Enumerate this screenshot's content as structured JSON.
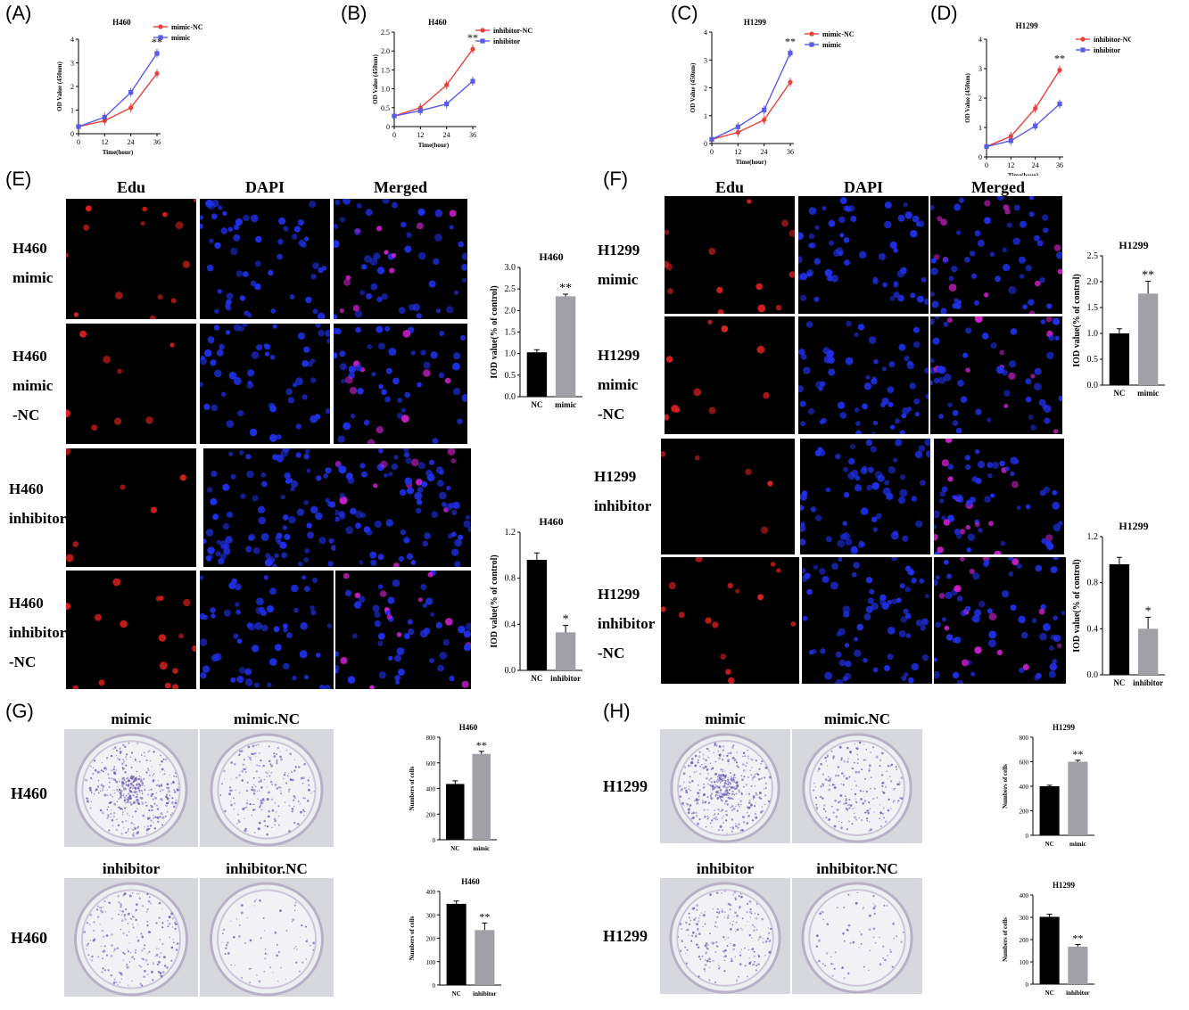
{
  "panel_labels": [
    "(A)",
    "(B)",
    "(C)",
    "(D)",
    "(E)",
    "(F)",
    "(G)",
    "(H)"
  ],
  "micro_headers": {
    "edu": "Edu",
    "dapi": "DAPI",
    "merged": "Merged"
  },
  "e_rows": [
    [
      "H460",
      "mimic"
    ],
    [
      "H460",
      "mimic",
      "-NC"
    ],
    [
      "H460",
      "inhibitor"
    ],
    [
      "H460",
      "inhibitor",
      "-NC"
    ]
  ],
  "f_rows": [
    [
      "H1299",
      "mimic"
    ],
    [
      "H1299",
      "mimic",
      "-NC"
    ],
    [
      "H1299",
      "inhibitor"
    ],
    [
      "H1299",
      "inhibitor",
      "-NC"
    ]
  ],
  "g_dish_labels": {
    "mimic": "mimic",
    "mimic_nc": "mimic.NC",
    "inhibitor": "inhibitor",
    "inhibitor_nc": "inhibitor.NC"
  },
  "g_row_label": "H460",
  "h_row_label": "H1299",
  "colors": {
    "red": "#e8403a",
    "blue": "#5a5ae8",
    "grey": "#a0a0a6",
    "black": "#000000",
    "edu": "#e02020",
    "dapi": "#2030e8",
    "merged": "#d020d0"
  },
  "chart_data": [
    {
      "id": "A",
      "type": "line",
      "title": "H460",
      "xlabel": "Time(hour)",
      "ylabel": "OD Value (450nm)",
      "x": [
        0,
        12,
        24,
        36
      ],
      "xticks": [
        "0",
        "12",
        "24",
        "36"
      ],
      "ylim": [
        0,
        4
      ],
      "yticks": [
        "0",
        "1",
        "2",
        "3",
        "4"
      ],
      "series": [
        {
          "name": "mimic-NC",
          "color": "red",
          "values": [
            0.3,
            0.55,
            1.1,
            2.55
          ]
        },
        {
          "name": "mimic",
          "color": "blue",
          "values": [
            0.3,
            0.7,
            1.75,
            3.4
          ]
        }
      ],
      "annotation": "**"
    },
    {
      "id": "B",
      "type": "line",
      "title": "H460",
      "xlabel": "Time(hour)",
      "ylabel": "OD Value (450nm)",
      "x": [
        0,
        12,
        24,
        36
      ],
      "xticks": [
        "0",
        "12",
        "24",
        "36"
      ],
      "ylim": [
        0,
        2.5
      ],
      "yticks": [
        "0",
        "0.5",
        "1.0",
        "1.5",
        "2.0",
        "2.5"
      ],
      "series": [
        {
          "name": "inhibitor-NC",
          "color": "red",
          "values": [
            0.28,
            0.5,
            1.1,
            2.05
          ]
        },
        {
          "name": "inhibitor",
          "color": "blue",
          "values": [
            0.28,
            0.42,
            0.6,
            1.2
          ]
        }
      ],
      "annotation": "**"
    },
    {
      "id": "C",
      "type": "line",
      "title": "H1299",
      "xlabel": "Time(hour)",
      "ylabel": "OD Value (450nm)",
      "x": [
        0,
        12,
        24,
        36
      ],
      "xticks": [
        "0",
        "12",
        "24",
        "36"
      ],
      "ylim": [
        0,
        4
      ],
      "yticks": [
        "0",
        "1",
        "2",
        "3",
        "4"
      ],
      "series": [
        {
          "name": "mimic-NC",
          "color": "red",
          "values": [
            0.15,
            0.4,
            0.85,
            2.2
          ]
        },
        {
          "name": "mimic",
          "color": "blue",
          "values": [
            0.15,
            0.6,
            1.2,
            3.25
          ]
        }
      ],
      "annotation": "**"
    },
    {
      "id": "D",
      "type": "line",
      "title": "H1299",
      "xlabel": "Time(hour)",
      "ylabel": "OD Value (450nm)",
      "x": [
        0,
        12,
        24,
        36
      ],
      "xticks": [
        "0",
        "12",
        "24",
        "36"
      ],
      "ylim": [
        0,
        4
      ],
      "yticks": [
        "0",
        "1",
        "2",
        "3",
        "4"
      ],
      "series": [
        {
          "name": "inhibitor-NC",
          "color": "red",
          "values": [
            0.35,
            0.7,
            1.65,
            2.95
          ]
        },
        {
          "name": "inhibitor",
          "color": "blue",
          "values": [
            0.35,
            0.55,
            1.05,
            1.8
          ]
        }
      ],
      "annotation": "**"
    },
    {
      "id": "E1",
      "type": "bar",
      "title": "H460",
      "ylabel": "IOD value(% of control)",
      "categories": [
        "NC",
        "mimic"
      ],
      "values": [
        1.03,
        2.33
      ],
      "errors": [
        0.06,
        0.05
      ],
      "colors": [
        "black",
        "grey"
      ],
      "ylim": [
        0,
        3.0
      ],
      "yticks": [
        "0.0",
        "0.5",
        "1.0",
        "1.5",
        "2.0",
        "2.5",
        "3.0"
      ],
      "annotation": "**"
    },
    {
      "id": "E2",
      "type": "bar",
      "title": "H460",
      "ylabel": "IOD value(% of control)",
      "categories": [
        "NC",
        "inhibitor"
      ],
      "values": [
        0.96,
        0.33
      ],
      "errors": [
        0.06,
        0.06
      ],
      "colors": [
        "black",
        "grey"
      ],
      "ylim": [
        0,
        1.2
      ],
      "yticks": [
        "0.0",
        "0.4",
        "0.8",
        "1.2"
      ],
      "annotation": "*"
    },
    {
      "id": "F1",
      "type": "bar",
      "title": "H1299",
      "ylabel": "IOD value(% of control)",
      "categories": [
        "NC",
        "mimic"
      ],
      "values": [
        1.0,
        1.77
      ],
      "errors": [
        0.09,
        0.24
      ],
      "colors": [
        "black",
        "grey"
      ],
      "ylim": [
        0,
        2.5
      ],
      "yticks": [
        "0.0",
        "0.5",
        "1.0",
        "1.5",
        "2.0",
        "2.5"
      ],
      "annotation": "**"
    },
    {
      "id": "F2",
      "type": "bar",
      "title": "H1299",
      "ylabel": "IOD value(% of control)",
      "categories": [
        "NC",
        "inhibitor"
      ],
      "values": [
        0.96,
        0.4
      ],
      "errors": [
        0.06,
        0.1
      ],
      "colors": [
        "black",
        "grey"
      ],
      "ylim": [
        0,
        1.2
      ],
      "yticks": [
        "0.0",
        "0.4",
        "0.8",
        "1.2"
      ],
      "annotation": "*"
    },
    {
      "id": "G1",
      "type": "bar",
      "title": "H460",
      "ylabel": "Numbers of cells",
      "categories": [
        "NC",
        "mimic"
      ],
      "values": [
        435,
        670
      ],
      "errors": [
        25,
        20
      ],
      "colors": [
        "black",
        "grey"
      ],
      "ylim": [
        0,
        800
      ],
      "yticks": [
        "0",
        "200",
        "400",
        "600",
        "800"
      ],
      "annotation": "**"
    },
    {
      "id": "G2",
      "type": "bar",
      "title": "H460",
      "ylabel": "Numbers of cells",
      "categories": [
        "NC",
        "inhibitor"
      ],
      "values": [
        347,
        235
      ],
      "errors": [
        12,
        30
      ],
      "colors": [
        "black",
        "grey"
      ],
      "ylim": [
        0,
        400
      ],
      "yticks": [
        "0",
        "100",
        "200",
        "300",
        "400"
      ],
      "annotation": "**"
    },
    {
      "id": "H1",
      "type": "bar",
      "title": "H1299",
      "ylabel": "Numbers of cells",
      "categories": [
        "NC",
        "mimic"
      ],
      "values": [
        400,
        600
      ],
      "errors": [
        8,
        12
      ],
      "colors": [
        "black",
        "grey"
      ],
      "ylim": [
        0,
        800
      ],
      "yticks": [
        "0",
        "200",
        "400",
        "600",
        "800"
      ],
      "annotation": "**"
    },
    {
      "id": "H2",
      "type": "bar",
      "title": "H1299",
      "ylabel": "Numbers of cells",
      "categories": [
        "NC",
        "inhibitor"
      ],
      "values": [
        302,
        168
      ],
      "errors": [
        12,
        10
      ],
      "colors": [
        "black",
        "grey"
      ],
      "ylim": [
        0,
        400
      ],
      "yticks": [
        "0",
        "100",
        "200",
        "300",
        "400"
      ],
      "annotation": "**"
    }
  ]
}
